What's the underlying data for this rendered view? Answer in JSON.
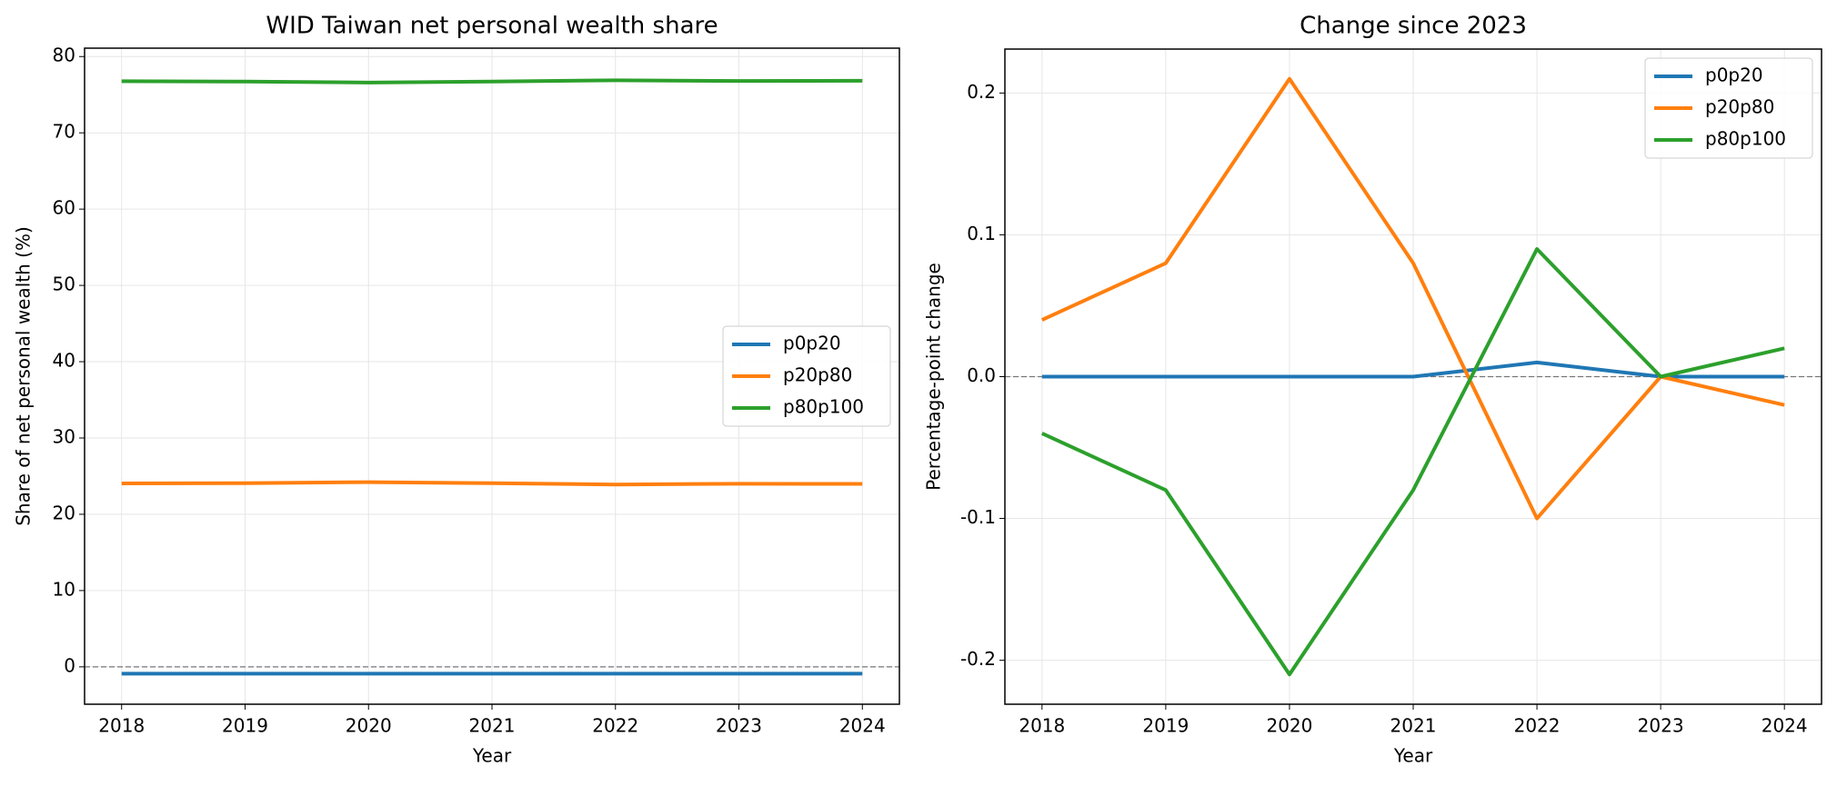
{
  "chart_data": [
    {
      "type": "line",
      "title": "WID Taiwan net personal wealth share",
      "xlabel": "Year",
      "ylabel": "Share of net personal wealth (%)",
      "x": [
        2018,
        2019,
        2020,
        2021,
        2022,
        2023,
        2024
      ],
      "series": [
        {
          "name": "p0p20",
          "color": "#1f77b4",
          "values": [
            -0.9,
            -0.9,
            -0.9,
            -0.9,
            -0.89,
            -0.9,
            -0.9
          ]
        },
        {
          "name": "p20p80",
          "color": "#ff7f0e",
          "values": [
            24.04,
            24.08,
            24.21,
            24.08,
            23.9,
            24.0,
            23.98
          ]
        },
        {
          "name": "p80p100",
          "color": "#2ca02c",
          "values": [
            76.76,
            76.72,
            76.59,
            76.72,
            76.89,
            76.8,
            76.82
          ]
        }
      ],
      "xlim": [
        2017.7,
        2024.3
      ],
      "xticks": [
        2018,
        2019,
        2020,
        2021,
        2022,
        2023,
        2024
      ],
      "ylim": [
        -4.9,
        81.1
      ],
      "yticks": [
        0,
        10,
        20,
        30,
        40,
        50,
        60,
        70,
        80
      ],
      "grid": true,
      "hline": 0,
      "legend": "center right"
    },
    {
      "type": "line",
      "title": "Change since 2023",
      "xlabel": "Year",
      "ylabel": "Percentage-point change",
      "x": [
        2018,
        2019,
        2020,
        2021,
        2022,
        2023,
        2024
      ],
      "series": [
        {
          "name": "p0p20",
          "color": "#1f77b4",
          "values": [
            0,
            0,
            0,
            0,
            0.01,
            0,
            0
          ]
        },
        {
          "name": "p20p80",
          "color": "#ff7f0e",
          "values": [
            0.04,
            0.08,
            0.21,
            0.08,
            -0.1,
            0,
            -0.02
          ]
        },
        {
          "name": "p80p100",
          "color": "#2ca02c",
          "values": [
            -0.04,
            -0.08,
            -0.21,
            -0.08,
            0.09,
            0,
            0.02
          ]
        }
      ],
      "xlim": [
        2017.7,
        2024.3
      ],
      "xticks": [
        2018,
        2019,
        2020,
        2021,
        2022,
        2023,
        2024
      ],
      "ylim": [
        -0.231,
        0.231
      ],
      "yticks": [
        -0.2,
        -0.1,
        {
          "value": 0,
          "label": "0.0"
        },
        0.1,
        0.2
      ],
      "grid": true,
      "hline": 0,
      "legend": "upper right"
    }
  ]
}
